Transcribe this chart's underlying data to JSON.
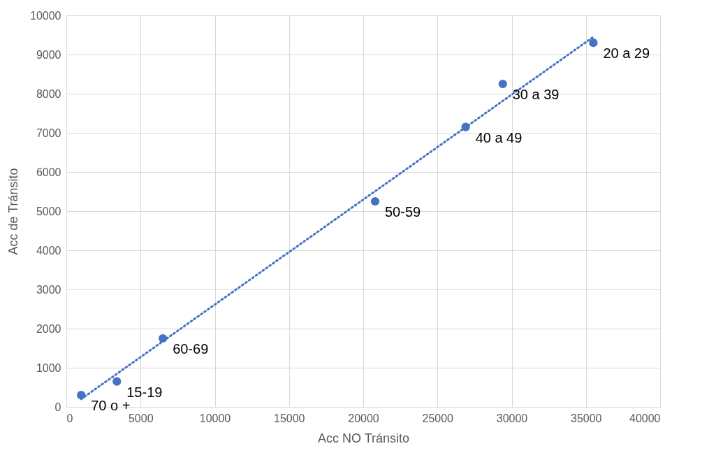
{
  "chart_data": {
    "type": "scatter",
    "xlabel": "Acc NO Tránsito",
    "ylabel": "Acc de Tránsito",
    "xlim": [
      0,
      40000
    ],
    "xticks": [
      0,
      5000,
      10000,
      15000,
      20000,
      25000,
      30000,
      35000,
      40000
    ],
    "ylim": [
      0,
      10000
    ],
    "yticks": [
      0,
      1000,
      2000,
      3000,
      4000,
      5000,
      6000,
      7000,
      8000,
      9000,
      10000
    ],
    "grid": true,
    "marker": "circle",
    "series": [
      {
        "color": "#4472c4",
        "x": [
          1000,
          3400,
          6500,
          20800,
          26900,
          29400,
          35500
        ],
        "values": [
          300,
          650,
          1750,
          5250,
          7150,
          8250,
          9300
        ]
      },
      {
        "type": "line",
        "color": "#4472c4",
        "line_style": "dotted",
        "marker": "none",
        "x": [
          1000,
          35500
        ],
        "values": [
          200,
          9450
        ]
      }
    ],
    "annotations": [
      {
        "text": "70 o +",
        "x": 1000,
        "y": 300
      },
      {
        "text": "15-19",
        "x": 3400,
        "y": 650
      },
      {
        "text": "60-69",
        "x": 6500,
        "y": 1750
      },
      {
        "text": "50-59",
        "x": 20800,
        "y": 5250
      },
      {
        "text": "40 a 49",
        "x": 26900,
        "y": 7150
      },
      {
        "text": "30 a 39",
        "x": 29400,
        "y": 8250
      },
      {
        "text": "20 a 29",
        "x": 35500,
        "y": 9300
      }
    ]
  }
}
